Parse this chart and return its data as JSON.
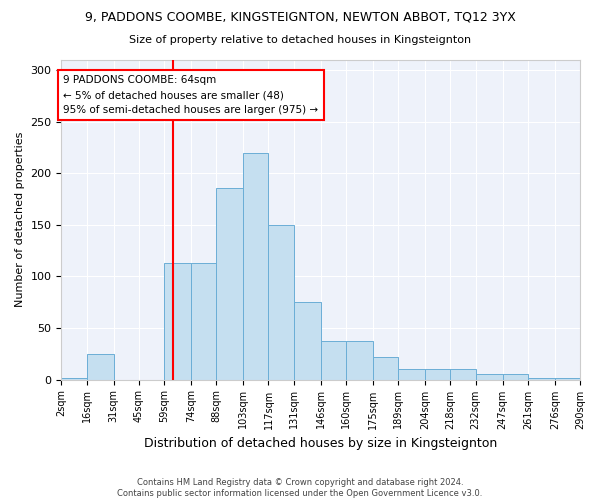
{
  "title1": "9, PADDONS COOMBE, KINGSTEIGNTON, NEWTON ABBOT, TQ12 3YX",
  "title2": "Size of property relative to detached houses in Kingsteignton",
  "xlabel": "Distribution of detached houses by size in Kingsteignton",
  "ylabel": "Number of detached properties",
  "footer1": "Contains HM Land Registry data © Crown copyright and database right 2024.",
  "footer2": "Contains public sector information licensed under the Open Government Licence v3.0.",
  "annotation_title": "9 PADDONS COOMBE: 64sqm",
  "annotation_line1": "← 5% of detached houses are smaller (48)",
  "annotation_line2": "95% of semi-detached houses are larger (975) →",
  "red_line_x": 64,
  "bin_edges": [
    2,
    16,
    31,
    45,
    59,
    74,
    88,
    103,
    117,
    131,
    146,
    160,
    175,
    189,
    204,
    218,
    232,
    247,
    261,
    276,
    290
  ],
  "bar_heights": [
    2,
    25,
    0,
    0,
    113,
    113,
    186,
    220,
    150,
    75,
    37,
    37,
    22,
    10,
    10,
    10,
    5,
    5,
    2,
    2
  ],
  "bar_color": "#c5dff0",
  "bar_edge_color": "#6baed6",
  "background_color": "#eef2fa",
  "grid_color": "#ffffff",
  "ylim": [
    0,
    310
  ],
  "yticks": [
    0,
    50,
    100,
    150,
    200,
    250,
    300
  ],
  "fig_width": 6.0,
  "fig_height": 5.0,
  "dpi": 100
}
